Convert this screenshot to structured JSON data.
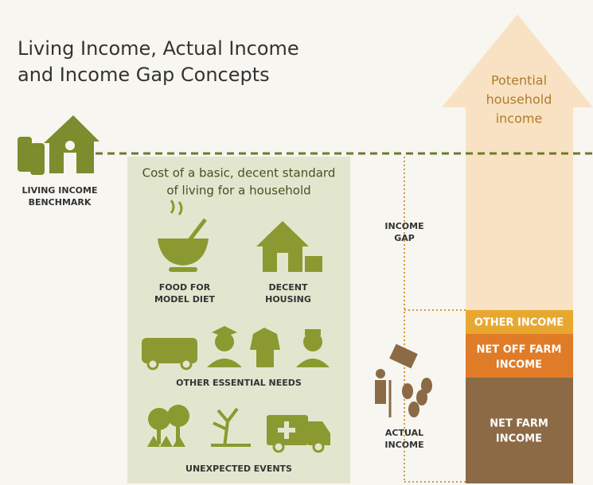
{
  "title": [
    "Living Income, Actual Income",
    "and Income Gap Concepts"
  ],
  "benchmark": {
    "label": [
      "LIVING INCOME",
      "BENCHMARK"
    ]
  },
  "cost_box": {
    "title": [
      "Cost of a basic, decent standard",
      "of living for a household"
    ],
    "items": [
      {
        "label": [
          "FOOD FOR",
          "MODEL DIET"
        ]
      },
      {
        "label": [
          "DECENT",
          "HOUSING"
        ]
      },
      {
        "label": [
          "OTHER ESSENTIAL NEEDS"
        ]
      },
      {
        "label": [
          "UNEXPECTED EVENTS"
        ]
      }
    ]
  },
  "income_gap": {
    "label": [
      "INCOME",
      "GAP"
    ]
  },
  "potential": {
    "label": [
      "Potential",
      "household",
      "income"
    ]
  },
  "actual": {
    "label": [
      "ACTUAL",
      "INCOME"
    ]
  },
  "stack": [
    {
      "label": [
        "OTHER INCOME"
      ]
    },
    {
      "label": [
        "NET OFF FARM",
        "INCOME"
      ]
    },
    {
      "label": [
        "NET FARM",
        "INCOME"
      ]
    }
  ]
}
